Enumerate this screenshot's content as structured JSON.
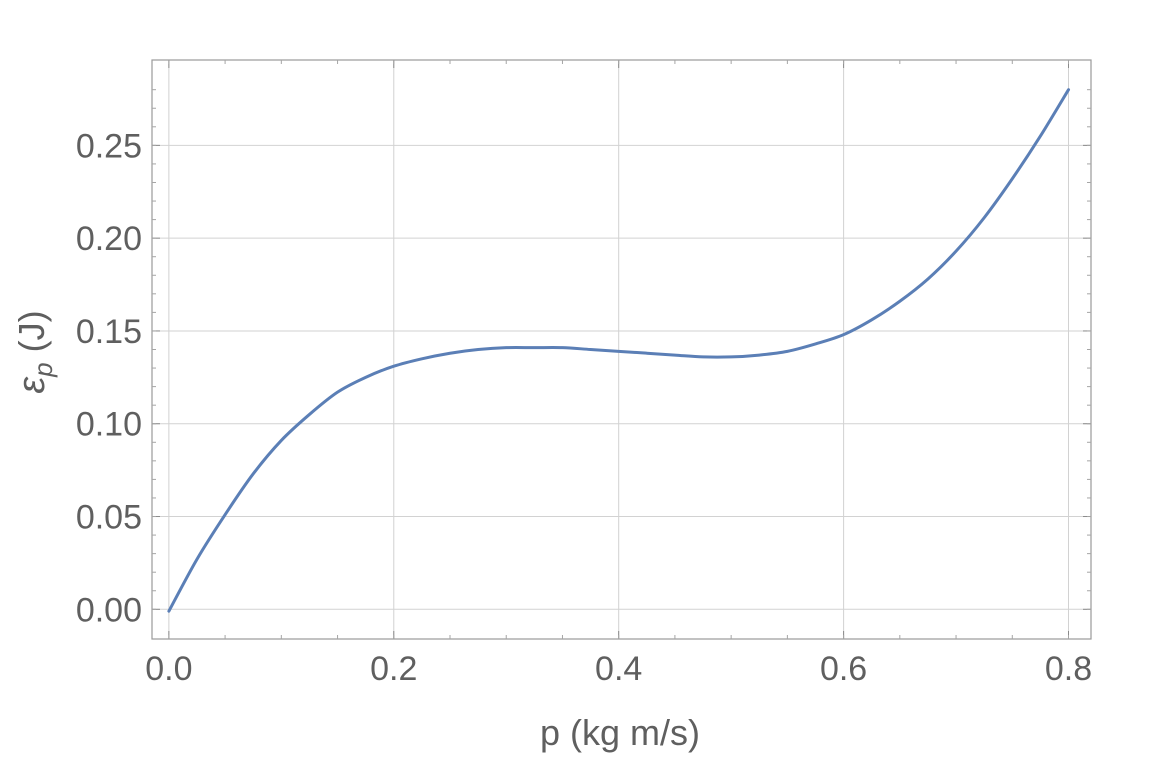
{
  "chart_data": {
    "type": "line",
    "xlabel": "p (kg m/s)",
    "ylabel_main": "ε",
    "ylabel_sub": "p",
    "ylabel_unit": " (J)",
    "xlim": [
      -0.015,
      0.82
    ],
    "ylim": [
      -0.016,
      0.296
    ],
    "xticks": [
      0.0,
      0.2,
      0.4,
      0.6,
      0.8
    ],
    "xtick_labels": [
      "0.0",
      "0.2",
      "0.4",
      "0.6",
      "0.8"
    ],
    "yticks": [
      0.0,
      0.05,
      0.1,
      0.15,
      0.2,
      0.25
    ],
    "ytick_labels": [
      "0.00",
      "0.05",
      "0.10",
      "0.15",
      "0.20",
      "0.25"
    ],
    "grid": true,
    "line_color": "#5b7fb6",
    "series": [
      {
        "x": [
          0.0,
          0.025,
          0.05,
          0.075,
          0.1,
          0.125,
          0.15,
          0.175,
          0.2,
          0.225,
          0.25,
          0.275,
          0.3,
          0.325,
          0.35,
          0.375,
          0.4,
          0.425,
          0.45,
          0.475,
          0.5,
          0.525,
          0.55,
          0.575,
          0.6,
          0.625,
          0.65,
          0.675,
          0.7,
          0.725,
          0.75,
          0.775,
          0.8
        ],
        "y": [
          -0.001,
          0.027,
          0.051,
          0.073,
          0.091,
          0.105,
          0.117,
          0.125,
          0.131,
          0.135,
          0.138,
          0.14,
          0.141,
          0.141,
          0.141,
          0.14,
          0.139,
          0.138,
          0.137,
          0.136,
          0.136,
          0.137,
          0.139,
          0.143,
          0.148,
          0.156,
          0.166,
          0.178,
          0.193,
          0.211,
          0.232,
          0.255,
          0.28
        ]
      }
    ]
  }
}
